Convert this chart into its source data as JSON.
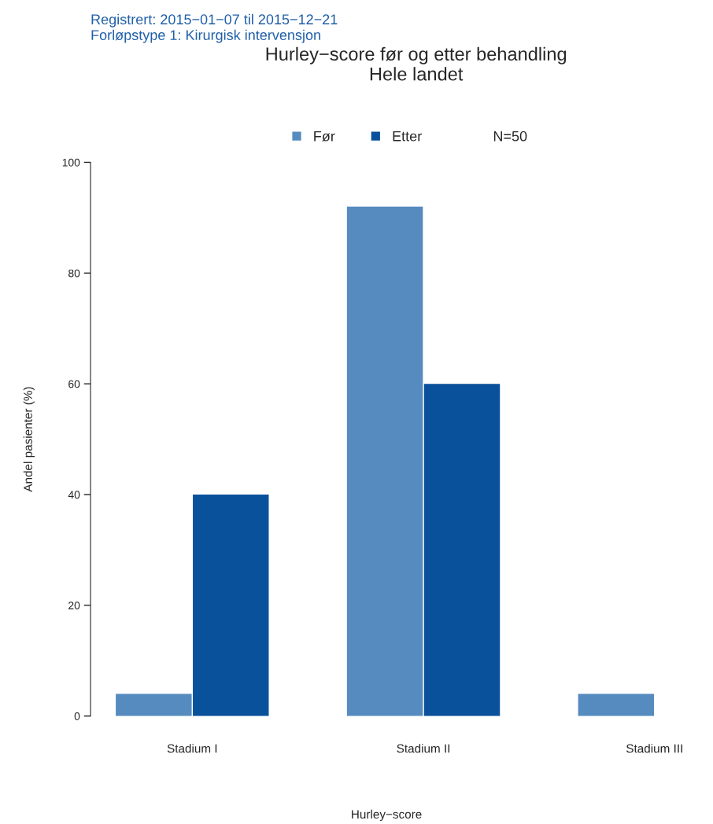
{
  "chart_data": {
    "type": "bar",
    "title": "Hurley−score før og etter behandling\nHele landet",
    "xlabel": "Hurley−score",
    "ylabel": "Andel pasienter (%)",
    "categories": [
      "Stadium I",
      "Stadium II",
      "Stadium III"
    ],
    "series": [
      {
        "name": "Før",
        "color": "#568bbf",
        "values": [
          4,
          92,
          4
        ]
      },
      {
        "name": "Etter",
        "color": "#0a519b",
        "values": [
          40,
          60,
          0
        ]
      }
    ],
    "ylim": [
      0,
      100
    ],
    "yticks": [
      0,
      20,
      40,
      60,
      80,
      100
    ],
    "grid": false,
    "legend": "top",
    "annotations": [
      "Registrert: 2015−01−07 til 2015−12−21",
      "Forløpstype 1: Kirurgisk intervensjon",
      "N=50"
    ]
  }
}
